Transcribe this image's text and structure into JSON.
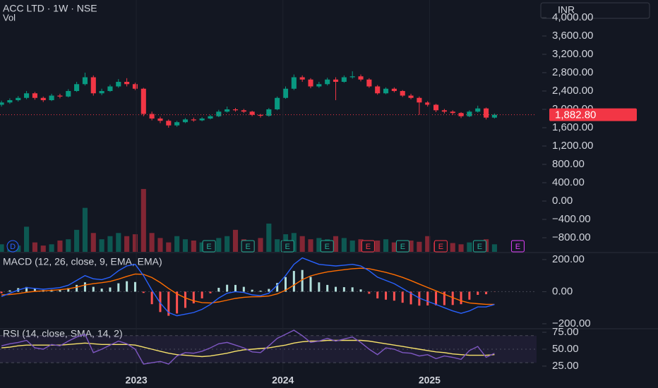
{
  "chart_data": [
    {
      "type": "candlestick",
      "title": "ACC LTD · 1W · NSE",
      "subtitle": "Vol",
      "currency": "INR",
      "up_color": "#089981",
      "down_color": "#f23645",
      "x": [
        2022.08,
        2022.137,
        2022.194,
        2022.251,
        2022.308,
        2022.365,
        2022.422,
        2022.479,
        2022.536,
        2022.593,
        2022.65,
        2022.707,
        2022.764,
        2022.821,
        2022.878,
        2022.935,
        2022.992,
        2023.049,
        2023.106,
        2023.163,
        2023.22,
        2023.277,
        2023.334,
        2023.391,
        2023.448,
        2023.505,
        2023.562,
        2023.619,
        2023.676,
        2023.733,
        2023.79,
        2023.847,
        2023.904,
        2023.961,
        2024.018,
        2024.075,
        2024.132,
        2024.189,
        2024.246,
        2024.303,
        2024.36,
        2024.417,
        2024.474,
        2024.531,
        2024.588,
        2024.645,
        2024.702,
        2024.759,
        2024.816,
        2024.873,
        2024.93,
        2024.987,
        2025.044,
        2025.101,
        2025.158,
        2025.215,
        2025.272,
        2025.329,
        2025.386,
        2025.443
      ],
      "open": [
        2100,
        2150,
        2200,
        2250,
        2350,
        2250,
        2200,
        2300,
        2280,
        2400,
        2550,
        2700,
        2350,
        2400,
        2500,
        2600,
        2550,
        2450,
        1900,
        1800,
        1750,
        1650,
        1720,
        1780,
        1760,
        1800,
        1850,
        1950,
        2000,
        1980,
        1950,
        1880,
        1860,
        2000,
        2250,
        2450,
        2700,
        2650,
        2500,
        2550,
        2650,
        2600,
        2700,
        2720,
        2650,
        2500,
        2350,
        2450,
        2400,
        2300,
        2250,
        2150,
        2100,
        1980,
        1950,
        1920,
        1850,
        1950,
        2020,
        1820
      ],
      "high": [
        2190,
        2240,
        2290,
        2400,
        2380,
        2280,
        2340,
        2340,
        2440,
        2600,
        2800,
        2740,
        2450,
        2540,
        2660,
        2680,
        2580,
        2470,
        1950,
        1840,
        1780,
        1750,
        1810,
        1820,
        1830,
        1880,
        1990,
        2060,
        2030,
        2010,
        1970,
        1900,
        2030,
        2280,
        2500,
        2760,
        2740,
        2680,
        2600,
        2690,
        2700,
        2740,
        2830,
        2760,
        2680,
        2530,
        2480,
        2480,
        2420,
        2340,
        2280,
        2180,
        2120,
        2010,
        1980,
        1940,
        1980,
        2080,
        2040,
        1910
      ],
      "low": [
        2060,
        2120,
        2170,
        2220,
        2210,
        2160,
        2180,
        2240,
        2260,
        2380,
        2520,
        2300,
        2310,
        2380,
        2470,
        2500,
        2420,
        1850,
        1760,
        1700,
        1600,
        1620,
        1700,
        1730,
        1740,
        1780,
        1830,
        1930,
        1950,
        1920,
        1850,
        1820,
        1840,
        1980,
        2230,
        2420,
        2600,
        2460,
        2470,
        2520,
        2200,
        2580,
        2670,
        2610,
        2470,
        2320,
        2330,
        2370,
        2270,
        2220,
        1880,
        2060,
        1940,
        1910,
        1880,
        1810,
        1830,
        1930,
        1780,
        1800
      ],
      "close": [
        2150,
        2200,
        2250,
        2350,
        2250,
        2200,
        2300,
        2280,
        2400,
        2550,
        2700,
        2350,
        2400,
        2500,
        2600,
        2550,
        2450,
        1900,
        1800,
        1750,
        1650,
        1720,
        1780,
        1760,
        1800,
        1850,
        1950,
        2000,
        1980,
        1950,
        1880,
        1860,
        2000,
        2250,
        2450,
        2700,
        2650,
        2500,
        2550,
        2650,
        2600,
        2700,
        2720,
        2650,
        2500,
        2350,
        2450,
        2400,
        2300,
        2250,
        2150,
        2100,
        1980,
        1950,
        1920,
        1850,
        1950,
        2020,
        1820,
        1882.8
      ],
      "volume": [
        12,
        8,
        10,
        40,
        15,
        10,
        12,
        18,
        20,
        35,
        70,
        30,
        20,
        25,
        30,
        25,
        28,
        100,
        30,
        22,
        15,
        25,
        20,
        18,
        15,
        18,
        22,
        25,
        35,
        20,
        18,
        22,
        45,
        20,
        28,
        30,
        25,
        20,
        22,
        20,
        25,
        22,
        18,
        20,
        15,
        18,
        20,
        15,
        14,
        18,
        16,
        25,
        15,
        12,
        14,
        12,
        15,
        18,
        20,
        12
      ],
      "volume_ylim": [
        0,
        110
      ],
      "last_price_label": "1,882.80",
      "xlim": [
        2022.07,
        2025.73
      ],
      "xticks": [
        2023,
        2024,
        2025
      ],
      "ylim": [
        -1108,
        4385
      ],
      "yticks": [
        {
          "value": 4000,
          "label": "4,000.00"
        },
        {
          "value": 3600,
          "label": "3,600.00"
        },
        {
          "value": 3200,
          "label": "3,200.00"
        },
        {
          "value": 2800,
          "label": "2,800.00"
        },
        {
          "value": 2400,
          "label": "2,400.00"
        },
        {
          "value": 2000,
          "label": "2,000.00"
        },
        {
          "value": 1600,
          "label": "1,600.00"
        },
        {
          "value": 1200,
          "label": "1,200.00"
        },
        {
          "value": 800,
          "label": "800.00"
        },
        {
          "value": 400,
          "label": "400.00"
        },
        {
          "value": 0,
          "label": "0.00"
        },
        {
          "value": -400,
          "label": "−400.00"
        },
        {
          "value": -800,
          "label": "−800.00"
        }
      ],
      "events": [
        {
          "label": "D",
          "x": 2022.157,
          "color": "#2962ff"
        },
        {
          "label": "E",
          "x": 2023.496,
          "color": "#22ab94"
        },
        {
          "label": "E",
          "x": 2023.761,
          "color": "#22ab94"
        },
        {
          "label": "E",
          "x": 2024.031,
          "color": "#22ab94"
        },
        {
          "label": "E",
          "x": 2024.301,
          "color": "#22ab94"
        },
        {
          "label": "E",
          "x": 2024.581,
          "color": "#f23645"
        },
        {
          "label": "E",
          "x": 2024.817,
          "color": "#22ab94"
        },
        {
          "label": "E",
          "x": 2025.077,
          "color": "#f23645"
        },
        {
          "label": "E",
          "x": 2025.342,
          "color": "#22ab94"
        },
        {
          "label": "E",
          "x": 2025.602,
          "color": "#e040fb"
        }
      ]
    },
    {
      "type": "macd",
      "title": "MACD (12, 26, close, 9, EMA, EMA)",
      "macd": {
        "color": "#2962ff",
        "values": [
          -30,
          -10,
          10,
          25,
          20,
          15,
          20,
          25,
          40,
          70,
          100,
          80,
          75,
          90,
          130,
          160,
          170,
          100,
          10,
          -70,
          -130,
          -150,
          -140,
          -130,
          -110,
          -80,
          -40,
          -10,
          0,
          -5,
          -20,
          -25,
          -10,
          40,
          100,
          170,
          210,
          190,
          170,
          165,
          160,
          165,
          170,
          160,
          130,
          90,
          70,
          50,
          20,
          -10,
          -40,
          -60,
          -80,
          -100,
          -120,
          -135,
          -120,
          -95,
          -95,
          -80
        ]
      },
      "signal": {
        "color": "#ff6d00",
        "values": [
          -20,
          -18,
          -12,
          -4,
          2,
          5,
          8,
          12,
          18,
          28,
          42,
          50,
          56,
          64,
          78,
          95,
          110,
          108,
          88,
          57,
          20,
          -14,
          -39,
          -57,
          -68,
          -70,
          -64,
          -53,
          -42,
          -35,
          -32,
          -31,
          -27,
          -14,
          9,
          41,
          75,
          98,
          112,
          123,
          130,
          137,
          143,
          146,
          143,
          132,
          120,
          106,
          89,
          69,
          47,
          26,
          5,
          -16,
          -37,
          -57,
          -70,
          -75,
          -79,
          -79
        ]
      },
      "histogram": {
        "up_color": "#b2dfdb",
        "down_color": "#ff5252",
        "values": [
          -10,
          8,
          22,
          29,
          18,
          10,
          12,
          13,
          22,
          42,
          58,
          30,
          19,
          26,
          52,
          65,
          60,
          -8,
          -78,
          -127,
          -150,
          -136,
          -101,
          -73,
          -42,
          -10,
          24,
          43,
          42,
          30,
          12,
          6,
          17,
          54,
          91,
          129,
          135,
          92,
          58,
          42,
          30,
          28,
          27,
          14,
          -13,
          -42,
          -50,
          -56,
          -69,
          -79,
          -87,
          -86,
          -85,
          -84,
          -83,
          -78,
          -50,
          -20,
          -16,
          -1
        ]
      },
      "ylim": [
        -231,
        226
      ],
      "yticks": [
        {
          "value": 200,
          "label": "200.00"
        },
        {
          "value": 0,
          "label": "0.00"
        },
        {
          "value": -200,
          "label": "−200.00"
        }
      ]
    },
    {
      "type": "rsi",
      "title": "RSI (14, close, SMA, 14, 2)",
      "rsi": {
        "color": "#7e57c2",
        "values": [
          55,
          58,
          60,
          63,
          52,
          50,
          57,
          55,
          62,
          68,
          72,
          45,
          50,
          56,
          62,
          58,
          50,
          28,
          30,
          32,
          28,
          40,
          45,
          44,
          47,
          52,
          58,
          60,
          56,
          52,
          46,
          45,
          55,
          66,
          72,
          78,
          70,
          60,
          62,
          66,
          62,
          65,
          68,
          60,
          50,
          42,
          52,
          50,
          45,
          44,
          40,
          42,
          36,
          40,
          38,
          35,
          48,
          54,
          38,
          44
        ]
      },
      "ma": {
        "color": "#f7e26b",
        "values": [
          52,
          53,
          55,
          56,
          56,
          56,
          56,
          56,
          57,
          58,
          59,
          58,
          57,
          57,
          57,
          57,
          56,
          53,
          50,
          47,
          44,
          42,
          41,
          40,
          39,
          40,
          42,
          44,
          47,
          49,
          50,
          51,
          52,
          54,
          56,
          59,
          61,
          62,
          62,
          63,
          63,
          63,
          63,
          63,
          62,
          60,
          58,
          56,
          54,
          52,
          50,
          48,
          46,
          45,
          43,
          42,
          41,
          41,
          41,
          42
        ]
      },
      "band": [
        30,
        70
      ],
      "midline": 50,
      "ylim": [
        15.6,
        80.2
      ],
      "yticks": [
        {
          "value": 75,
          "label": "75.00"
        },
        {
          "value": 50,
          "label": "50.00"
        },
        {
          "value": 25,
          "label": "25.00"
        }
      ]
    }
  ]
}
